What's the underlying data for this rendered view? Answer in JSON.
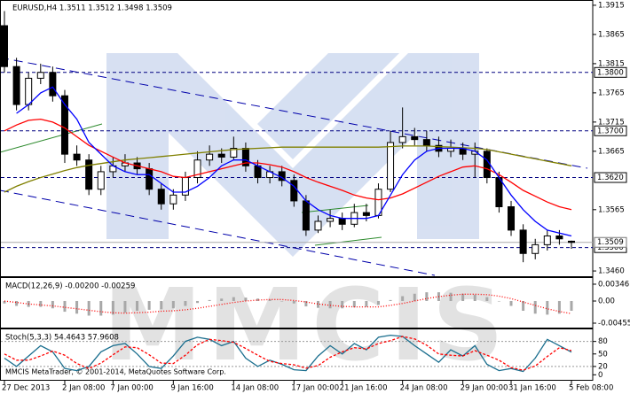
{
  "chart_data": [
    {
      "type": "candlestick",
      "title": "EURUSD,H4  1.3511 1.3512 1.3498 1.3509",
      "categories": [
        "27 Dec 2013",
        null,
        null,
        null,
        null,
        "2 Jan 08:00",
        null,
        null,
        null,
        "7 Jan 00:00",
        null,
        null,
        null,
        null,
        "9 Jan 16:00",
        null,
        null,
        null,
        null,
        "14 Jan 08:00",
        null,
        null,
        null,
        null,
        "17 Jan 00:00",
        null,
        null,
        null,
        "21 Jan 16:00",
        null,
        null,
        null,
        null,
        "24 Jan 08:00",
        null,
        null,
        null,
        null,
        "29 Jan 00:00",
        null,
        null,
        null,
        "31 Jan 16:00",
        null,
        null,
        null,
        null,
        "5 Feb 08:00"
      ],
      "open": [
        1.388,
        1.381,
        1.3745,
        1.379,
        1.38,
        1.376,
        1.366,
        1.365,
        1.36,
        1.363,
        1.364,
        1.3645,
        1.3635,
        1.36,
        1.3575,
        1.359,
        1.362,
        1.365,
        1.366,
        1.3655,
        1.367,
        1.364,
        1.362,
        1.363,
        1.3615,
        1.358,
        1.353,
        1.3545,
        1.355,
        1.354,
        1.356,
        1.3555,
        1.36,
        1.368,
        1.369,
        1.3685,
        1.3675,
        1.3665,
        1.367,
        1.366,
        1.3665,
        1.362,
        1.357,
        1.353,
        1.349,
        1.3505,
        1.352,
        1.3511
      ],
      "high": [
        1.3905,
        1.3825,
        1.38,
        1.3815,
        1.381,
        1.377,
        1.3675,
        1.366,
        1.364,
        1.3655,
        1.366,
        1.3655,
        1.3645,
        1.361,
        1.36,
        1.363,
        1.3665,
        1.3675,
        1.367,
        1.369,
        1.368,
        1.365,
        1.364,
        1.364,
        1.3625,
        1.359,
        1.3555,
        1.3565,
        1.356,
        1.3575,
        1.3575,
        1.361,
        1.37,
        1.374,
        1.3705,
        1.37,
        1.369,
        1.3685,
        1.368,
        1.368,
        1.367,
        1.363,
        1.358,
        1.354,
        1.3515,
        1.353,
        1.353,
        1.3512
      ],
      "low": [
        1.38,
        1.3735,
        1.3735,
        1.378,
        1.375,
        1.3645,
        1.364,
        1.359,
        1.359,
        1.362,
        1.363,
        1.3625,
        1.359,
        1.3565,
        1.3565,
        1.358,
        1.361,
        1.364,
        1.3645,
        1.365,
        1.363,
        1.361,
        1.361,
        1.3605,
        1.357,
        1.352,
        1.3525,
        1.3535,
        1.353,
        1.3535,
        1.3545,
        1.355,
        1.3595,
        1.367,
        1.3675,
        1.3665,
        1.3655,
        1.3655,
        1.365,
        1.362,
        1.361,
        1.356,
        1.352,
        1.3475,
        1.348,
        1.3495,
        1.3505,
        1.3498
      ],
      "close": [
        1.381,
        1.3745,
        1.379,
        1.38,
        1.376,
        1.366,
        1.365,
        1.36,
        1.363,
        1.364,
        1.3645,
        1.3635,
        1.36,
        1.3575,
        1.359,
        1.362,
        1.365,
        1.366,
        1.3655,
        1.367,
        1.364,
        1.362,
        1.363,
        1.3615,
        1.358,
        1.353,
        1.3545,
        1.355,
        1.354,
        1.356,
        1.3555,
        1.36,
        1.368,
        1.369,
        1.3685,
        1.3675,
        1.3665,
        1.367,
        1.366,
        1.3665,
        1.362,
        1.357,
        1.353,
        1.349,
        1.3505,
        1.352,
        1.3515,
        1.3509
      ],
      "series": [
        {
          "color": "#808000",
          "values": [
            1.3595,
            1.3605,
            1.3613,
            1.362,
            1.3626,
            1.3632,
            1.3637,
            1.3641,
            1.3644,
            1.3647,
            1.365,
            1.3652,
            1.3654,
            1.3656,
            1.3658,
            1.366,
            1.3662,
            1.3664,
            1.3666,
            1.3668,
            1.3669,
            1.367,
            1.3671,
            1.3672,
            1.3672,
            1.3672,
            1.3672,
            1.3672,
            1.3672,
            1.3672,
            1.3672,
            1.3672,
            1.3673,
            1.3674,
            1.3674,
            1.3674,
            1.3673,
            1.3672,
            1.3671,
            1.367,
            1.3668,
            1.3664,
            1.366,
            1.3656,
            1.3652,
            1.3648,
            1.3644,
            1.364
          ]
        },
        {
          "color": "#ff0000",
          "values": [
            1.37,
            1.371,
            1.3718,
            1.372,
            1.3715,
            1.3705,
            1.369,
            1.3675,
            1.3665,
            1.3655,
            1.3645,
            1.364,
            1.3635,
            1.363,
            1.3622,
            1.362,
            1.3625,
            1.363,
            1.3635,
            1.364,
            1.3645,
            1.3645,
            1.3642,
            1.3638,
            1.363,
            1.362,
            1.3612,
            1.3605,
            1.3598,
            1.359,
            1.3585,
            1.3582,
            1.3585,
            1.3592,
            1.3602,
            1.3612,
            1.3622,
            1.363,
            1.3638,
            1.364,
            1.3635,
            1.3625,
            1.3612,
            1.3598,
            1.3588,
            1.3578,
            1.357,
            1.3565
          ]
        },
        {
          "color": "#0000ff",
          "values": [
            null,
            1.373,
            1.3745,
            1.3765,
            1.3775,
            1.3745,
            1.372,
            1.368,
            1.366,
            1.364,
            1.363,
            1.3625,
            1.3625,
            1.361,
            1.3595,
            1.3595,
            1.3605,
            1.362,
            1.364,
            1.365,
            1.365,
            1.364,
            1.363,
            1.362,
            1.3605,
            1.358,
            1.3565,
            1.3555,
            1.355,
            1.355,
            1.355,
            1.3555,
            1.359,
            1.3625,
            1.365,
            1.3665,
            1.367,
            1.367,
            1.367,
            1.3665,
            1.365,
            1.362,
            1.359,
            1.3565,
            1.3545,
            1.353,
            1.3525,
            1.352
          ]
        }
      ],
      "ylim": [
        1.3451,
        1.3924
      ],
      "yticks": [
        1.3915,
        1.3865,
        1.3815,
        1.3765,
        1.3715,
        1.3665,
        1.3565,
        {
          "value": 1.346,
          "label": "1.3460"
        }
      ],
      "levels": [
        {
          "value": 1.38,
          "label": "1.3800"
        },
        {
          "value": 1.37,
          "label": "1.3700"
        },
        {
          "value": 1.362,
          "label": "1.3620"
        },
        {
          "value": 1.35,
          "label": "1.3500"
        }
      ],
      "bid": 1.3509
    },
    {
      "type": "bar",
      "title": "MACD(12,26,9) -0.00200 -0.00259",
      "color": "#a8a8a8",
      "values": [
        -0.0005,
        -0.001,
        -0.0012,
        -0.0012,
        -0.0015,
        -0.0022,
        -0.0026,
        -0.003,
        -0.003,
        -0.0028,
        -0.0024,
        -0.002,
        -0.0018,
        -0.0017,
        -0.0015,
        -0.001,
        -0.0004,
        0.0002,
        0.0005,
        0.0008,
        0.0007,
        0.0005,
        0.0003,
        0.0,
        -0.0005,
        -0.0011,
        -0.0014,
        -0.0015,
        -0.0015,
        -0.0013,
        -0.0012,
        -0.0008,
        0.0002,
        0.001,
        0.0015,
        0.0018,
        0.0018,
        0.0017,
        0.0015,
        0.0013,
        0.0008,
        0.0,
        -0.001,
        -0.002,
        -0.0026,
        -0.0028,
        -0.0026,
        -0.002
      ],
      "series": [
        {
          "color": "#ff0000",
          "style": "dotted",
          "values": [
            0.0,
            -0.0003,
            -0.0006,
            -0.0008,
            -0.001,
            -0.0013,
            -0.0016,
            -0.0019,
            -0.0022,
            -0.0024,
            -0.0025,
            -0.0024,
            -0.0023,
            -0.0021,
            -0.002,
            -0.0018,
            -0.0015,
            -0.0011,
            -0.0007,
            -0.0003,
            0.0,
            0.0002,
            0.0003,
            0.0003,
            0.0001,
            -0.0002,
            -0.0006,
            -0.0009,
            -0.0011,
            -0.0012,
            -0.0012,
            -0.0012,
            -0.0009,
            -0.0005,
            0.0,
            0.0005,
            0.0009,
            0.0012,
            0.0014,
            0.0014,
            0.0013,
            0.001,
            0.0005,
            -0.0002,
            -0.0009,
            -0.0016,
            -0.00215,
            -0.00259
          ]
        }
      ],
      "ylim": [
        -0.00546,
        0.00473
      ],
      "yticks": [
        0.00346,
        {
          "value": 0,
          "label": "0.00"
        },
        -0.00455
      ]
    },
    {
      "type": "line",
      "title": "Stoch(5,3,3) 54.4643 57.9608",
      "series": [
        {
          "color": "#1a6e8e",
          "style": "solid",
          "values": [
            40,
            20,
            45,
            70,
            55,
            15,
            10,
            20,
            55,
            70,
            75,
            50,
            20,
            15,
            45,
            80,
            90,
            85,
            70,
            80,
            40,
            20,
            35,
            25,
            12,
            10,
            45,
            70,
            50,
            75,
            60,
            90,
            95,
            92,
            70,
            50,
            30,
            60,
            45,
            70,
            25,
            10,
            15,
            8,
            40,
            85,
            70,
            54.4643
          ]
        },
        {
          "color": "#ff0000",
          "style": "dashed",
          "values": [
            50,
            35,
            35,
            45,
            57,
            47,
            27,
            15,
            28,
            48,
            67,
            65,
            48,
            28,
            27,
            47,
            72,
            85,
            82,
            78,
            63,
            47,
            32,
            27,
            24,
            16,
            22,
            42,
            55,
            65,
            62,
            75,
            82,
            92,
            86,
            71,
            50,
            47,
            45,
            58,
            47,
            35,
            17,
            11,
            21,
            44,
            65,
            57.9608
          ]
        }
      ],
      "ylim": [
        -10,
        109
      ],
      "yticks": [
        80,
        50,
        20,
        0
      ],
      "levels": [
        80,
        20
      ]
    }
  ],
  "watermark": "MMCIS",
  "footer": "MMCIS MetaTrader, © 2001-2014, MetaQuotes Software Corp."
}
